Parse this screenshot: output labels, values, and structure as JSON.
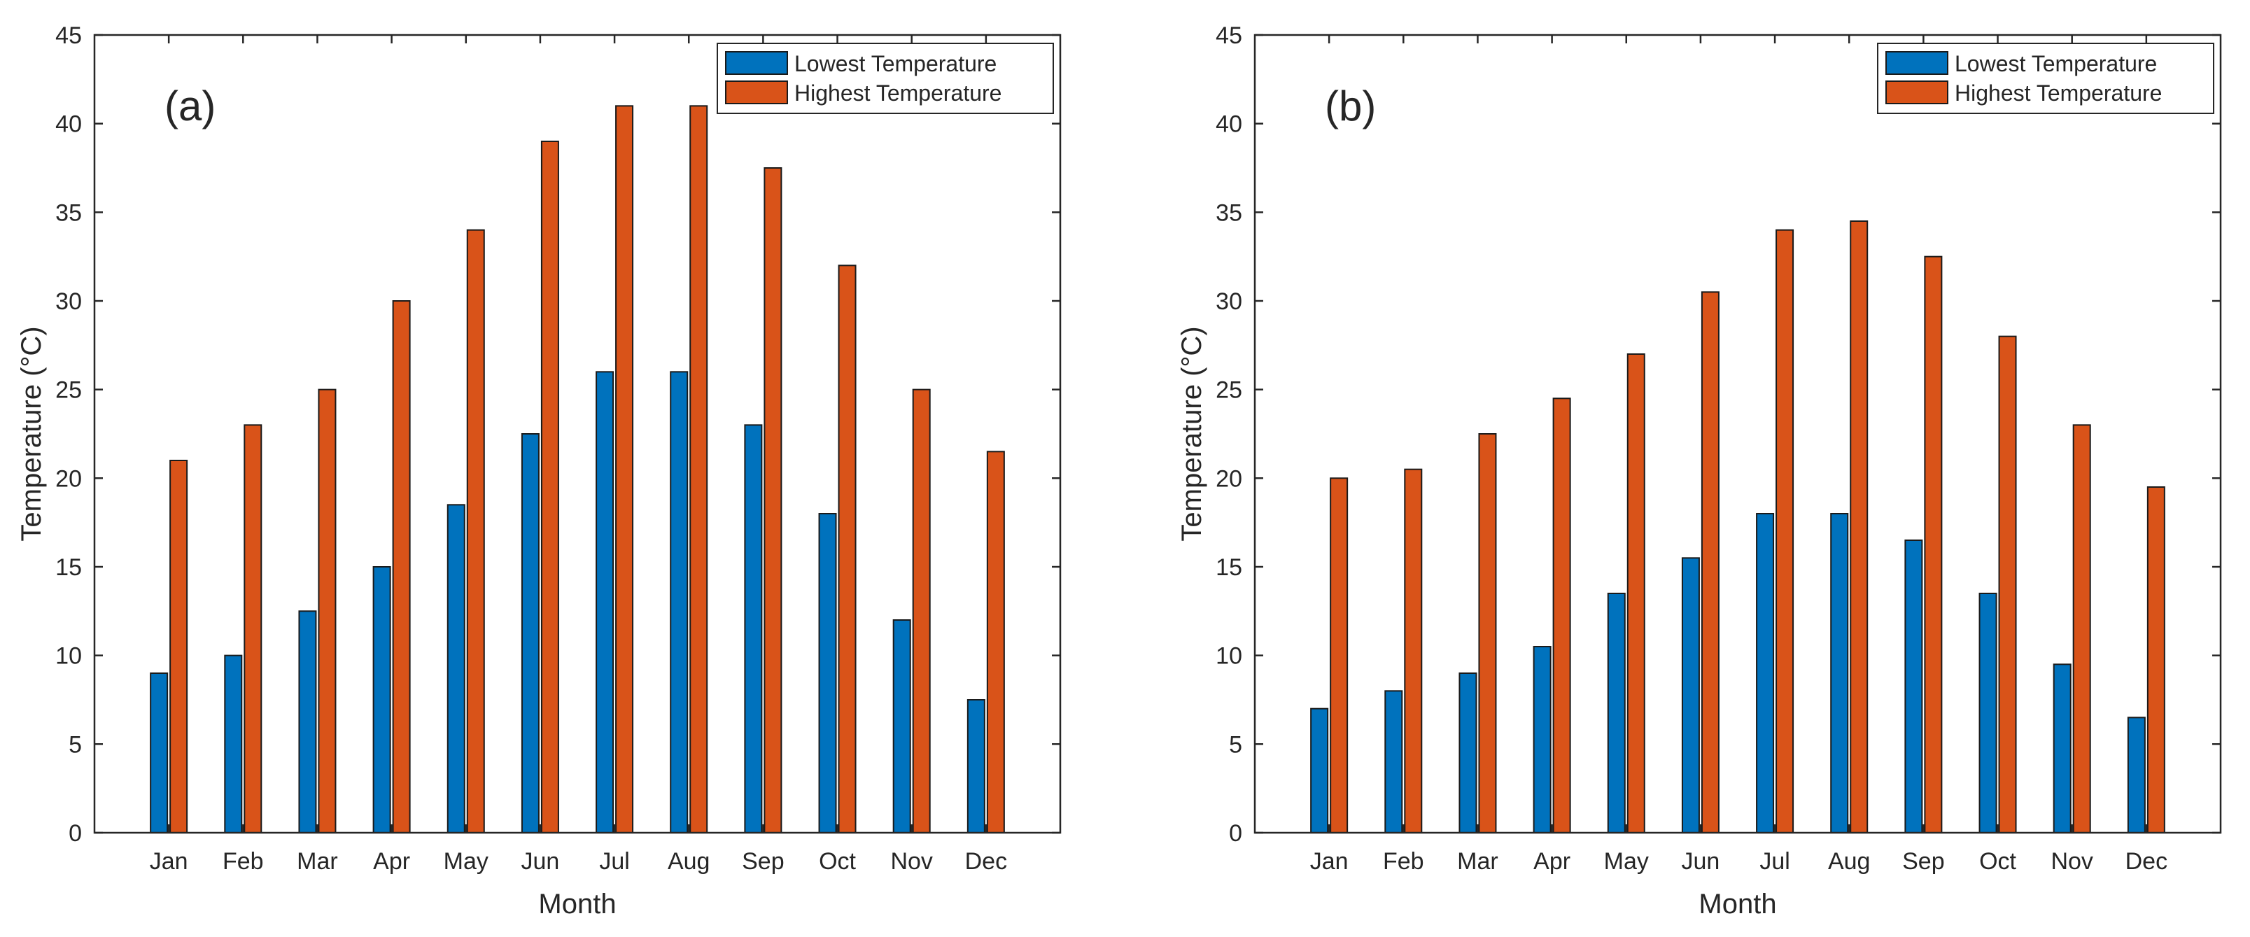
{
  "chart_data": [
    {
      "type": "bar",
      "panel_label": "(a)",
      "categories": [
        "Jan",
        "Feb",
        "Mar",
        "Apr",
        "May",
        "Jun",
        "Jul",
        "Aug",
        "Sep",
        "Oct",
        "Nov",
        "Dec"
      ],
      "series": [
        {
          "name": "Lowest Temperature",
          "color": "#0072BD",
          "values": [
            9,
            10,
            12.5,
            15,
            18.5,
            22.5,
            26,
            26,
            23,
            18,
            12,
            7.5
          ]
        },
        {
          "name": "Highest Temperature",
          "color": "#D95319",
          "values": [
            21,
            23,
            25,
            30,
            34,
            39,
            41,
            41,
            37.5,
            32,
            25,
            21.5
          ]
        }
      ],
      "xlabel": "Month",
      "ylabel": "Temperature (°C)",
      "ylim": [
        0,
        45
      ],
      "yticks": [
        "0",
        "5",
        "10",
        "15",
        "20",
        "25",
        "30",
        "35",
        "40",
        "45"
      ],
      "grid": false,
      "legend": "top-right"
    },
    {
      "type": "bar",
      "panel_label": "(b)",
      "categories": [
        "Jan",
        "Feb",
        "Mar",
        "Apr",
        "May",
        "Jun",
        "Jul",
        "Aug",
        "Sep",
        "Oct",
        "Nov",
        "Dec"
      ],
      "series": [
        {
          "name": "Lowest Temperature",
          "color": "#0072BD",
          "values": [
            7,
            8,
            9,
            10.5,
            13.5,
            15.5,
            18,
            18,
            16.5,
            13.5,
            9.5,
            6.5
          ]
        },
        {
          "name": "Highest Temperature",
          "color": "#D95319",
          "values": [
            20,
            20.5,
            22.5,
            24.5,
            27,
            30.5,
            34,
            34.5,
            32.5,
            28,
            23,
            19.5
          ]
        }
      ],
      "xlabel": "Month",
      "ylabel": "Temperature (°C)",
      "ylim": [
        0,
        45
      ],
      "yticks": [
        "0",
        "5",
        "10",
        "15",
        "20",
        "25",
        "30",
        "35",
        "40",
        "45"
      ],
      "grid": false,
      "legend": "top-right"
    }
  ]
}
